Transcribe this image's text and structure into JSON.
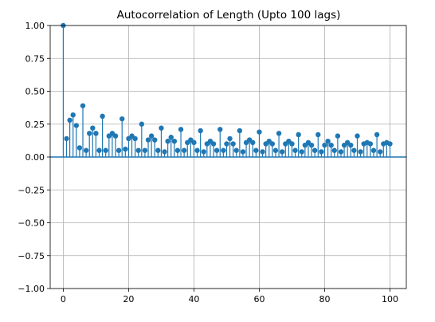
{
  "chart_data": {
    "type": "stem",
    "title": "Autocorrelation of Length (Upto 100 lags)",
    "xlabel": "",
    "ylabel": "",
    "xlim": [
      -4,
      105
    ],
    "ylim": [
      -1.0,
      1.0
    ],
    "xticks": [
      0,
      20,
      40,
      60,
      80,
      100
    ],
    "yticks": [
      -1.0,
      -0.75,
      -0.5,
      -0.25,
      0.0,
      0.25,
      0.5,
      0.75,
      1.0
    ],
    "xtick_labels": [
      "0",
      "20",
      "40",
      "60",
      "80",
      "100"
    ],
    "ytick_labels": [
      "−1.00",
      "−0.75",
      "−0.50",
      "−0.25",
      "0.00",
      "0.25",
      "0.50",
      "0.75",
      "1.00"
    ],
    "grid": true,
    "color": "#1f77b4",
    "lags": [
      0,
      1,
      2,
      3,
      4,
      5,
      6,
      7,
      8,
      9,
      10,
      11,
      12,
      13,
      14,
      15,
      16,
      17,
      18,
      19,
      20,
      21,
      22,
      23,
      24,
      25,
      26,
      27,
      28,
      29,
      30,
      31,
      32,
      33,
      34,
      35,
      36,
      37,
      38,
      39,
      40,
      41,
      42,
      43,
      44,
      45,
      46,
      47,
      48,
      49,
      50,
      51,
      52,
      53,
      54,
      55,
      56,
      57,
      58,
      59,
      60,
      61,
      62,
      63,
      64,
      65,
      66,
      67,
      68,
      69,
      70,
      71,
      72,
      73,
      74,
      75,
      76,
      77,
      78,
      79,
      80,
      81,
      82,
      83,
      84,
      85,
      86,
      87,
      88,
      89,
      90,
      91,
      92,
      93,
      94,
      95,
      96,
      97,
      98,
      99,
      100
    ],
    "values": [
      1.0,
      0.14,
      0.28,
      0.32,
      0.24,
      0.07,
      0.39,
      0.05,
      0.18,
      0.22,
      0.18,
      0.05,
      0.31,
      0.05,
      0.16,
      0.18,
      0.16,
      0.05,
      0.29,
      0.06,
      0.14,
      0.16,
      0.14,
      0.05,
      0.25,
      0.05,
      0.13,
      0.16,
      0.13,
      0.05,
      0.22,
      0.04,
      0.12,
      0.15,
      0.12,
      0.05,
      0.21,
      0.05,
      0.11,
      0.13,
      0.11,
      0.05,
      0.2,
      0.04,
      0.1,
      0.12,
      0.1,
      0.05,
      0.21,
      0.05,
      0.1,
      0.14,
      0.1,
      0.05,
      0.2,
      0.04,
      0.11,
      0.13,
      0.11,
      0.05,
      0.19,
      0.04,
      0.1,
      0.12,
      0.1,
      0.05,
      0.18,
      0.04,
      0.1,
      0.12,
      0.1,
      0.05,
      0.17,
      0.04,
      0.09,
      0.11,
      0.09,
      0.05,
      0.17,
      0.04,
      0.09,
      0.12,
      0.09,
      0.05,
      0.16,
      0.04,
      0.09,
      0.11,
      0.09,
      0.05,
      0.16,
      0.04,
      0.1,
      0.11,
      0.1,
      0.05,
      0.17,
      0.04,
      0.1,
      0.11,
      0.1
    ]
  }
}
